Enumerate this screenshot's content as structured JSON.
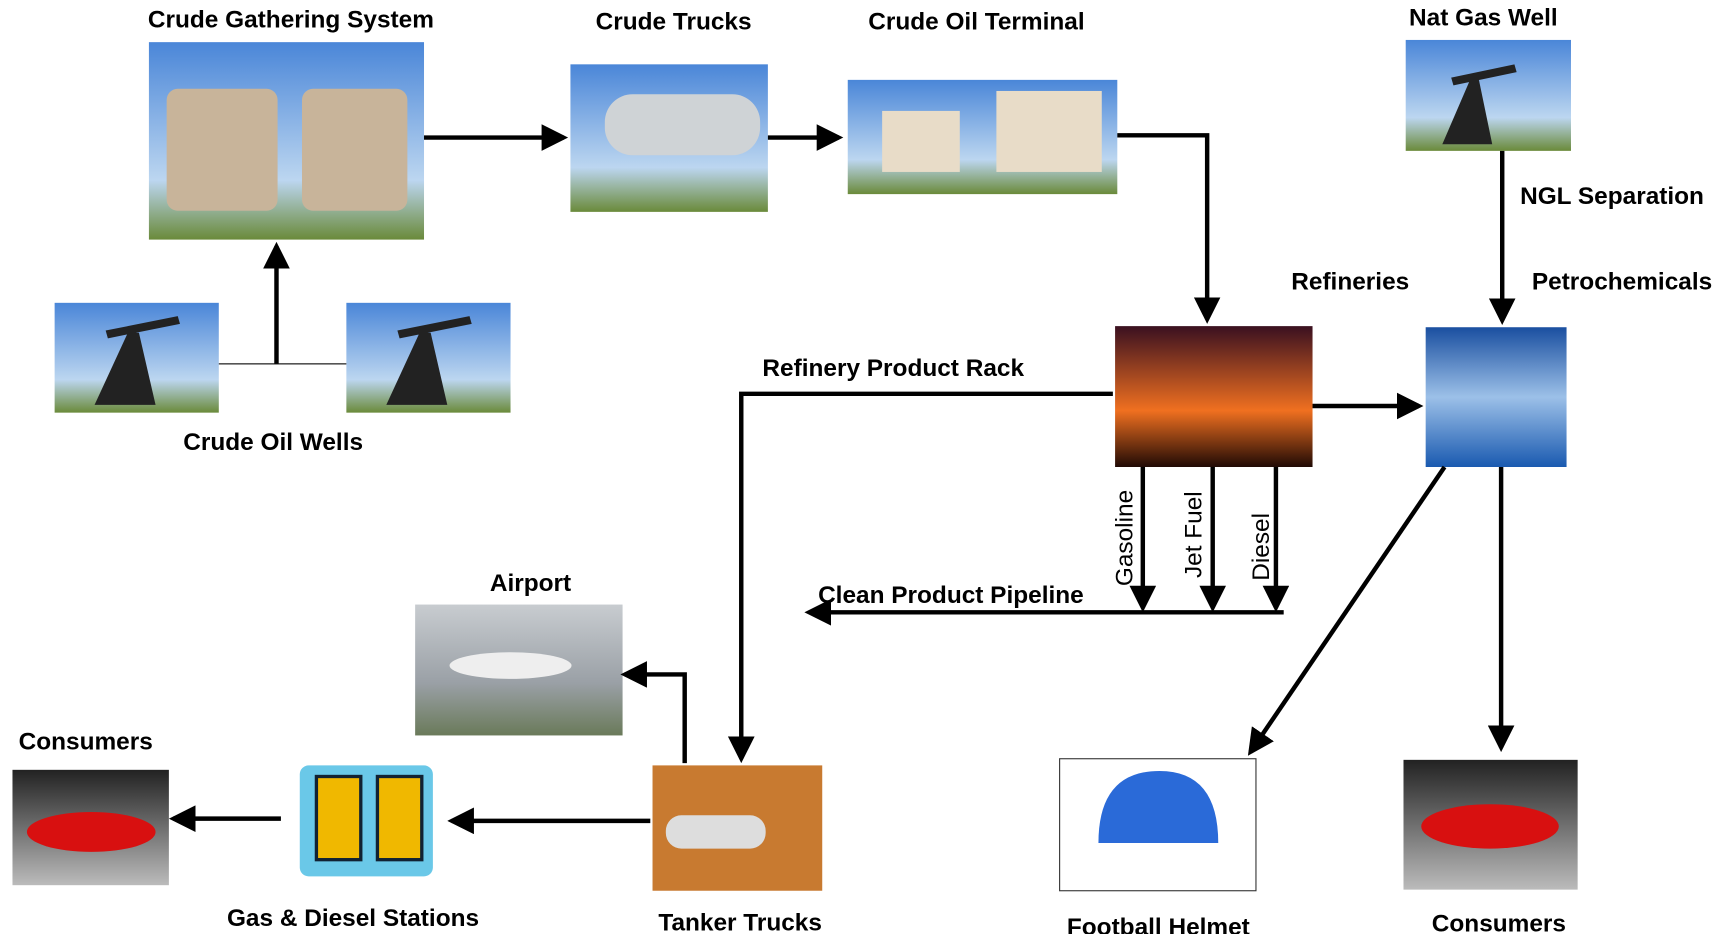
{
  "nodes": [
    {
      "label": "Crude Gathering System"
    },
    {
      "label": "Crude Trucks"
    },
    {
      "label": "Crude Oil Terminal"
    },
    {
      "label": "Nat Gas Well"
    },
    {
      "label": "NGL Separation"
    },
    {
      "label": "Refineries"
    },
    {
      "label": "Petrochemicals"
    },
    {
      "label": "Refinery Product Rack"
    },
    {
      "label": "Crude Oil Wells"
    },
    {
      "label": "Gasoline"
    },
    {
      "label": "Jet Fuel"
    },
    {
      "label": "Diesel"
    },
    {
      "label": "Clean Product Pipeline"
    },
    {
      "label": "Airport"
    },
    {
      "label": "Consumers"
    },
    {
      "label": "Gas & Diesel Stations"
    },
    {
      "label": "Tanker Trucks"
    },
    {
      "label": "Football Helmet"
    },
    {
      "label": "Consumers"
    }
  ]
}
